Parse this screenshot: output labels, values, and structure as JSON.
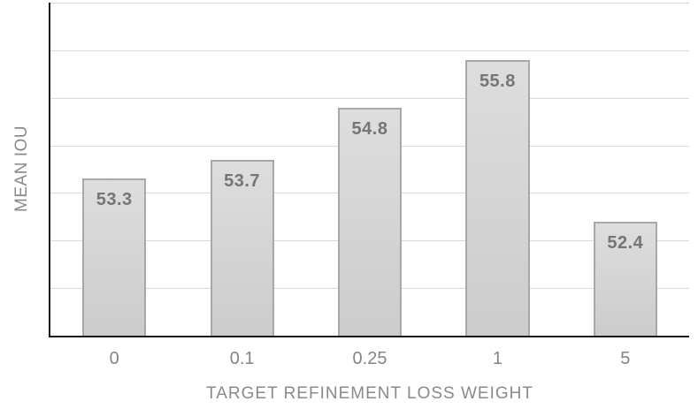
{
  "chart_data": {
    "type": "bar",
    "xlabel": "TARGET REFINEMENT LOSS WEIGHT",
    "ylabel": "MEAN IOU",
    "categories": [
      "0",
      "0.1",
      "0.25",
      "1",
      "5"
    ],
    "values": [
      53.3,
      53.7,
      54.8,
      55.8,
      52.4
    ],
    "bar_labels": [
      "53.3",
      "53.7",
      "54.8",
      "55.8",
      "52.4"
    ],
    "ylim": [
      50,
      57
    ],
    "gridline_step": 1,
    "grid": "horizontal-only",
    "legend": "none",
    "y_tick_labels_visible": false,
    "colors": {
      "bg": "#ffffff",
      "axis": "#1a1a1a",
      "gridline": "#d9d9d9",
      "bar_fill_top": "#dddddd",
      "bar_fill_bottom": "#cccccc",
      "bar_border": "#a8a8a8",
      "bar_label_text": "#757575",
      "tick_text": "#848484",
      "axis_title_text": "#8a8a8a"
    }
  }
}
